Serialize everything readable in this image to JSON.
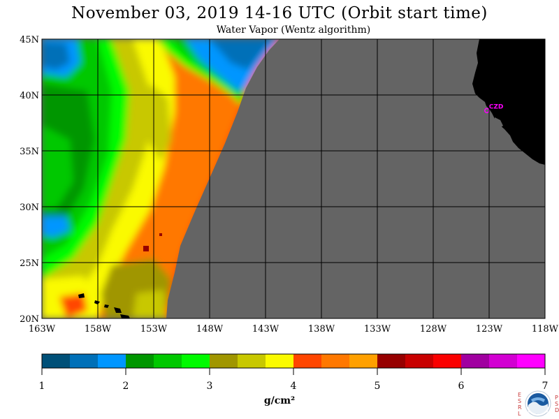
{
  "header": {
    "title": "November 03, 2019  14-16 UTC  (Orbit start time)",
    "subtitle": "Water Vapor (Wentz algorithm)"
  },
  "map": {
    "lat_labels": [
      "45N",
      "40N",
      "35N",
      "30N",
      "25N",
      "20N"
    ],
    "lon_labels": [
      "163W",
      "158W",
      "153W",
      "148W",
      "143W",
      "138W",
      "133W",
      "128W",
      "123W",
      "118W"
    ],
    "station": {
      "label": "CZD",
      "lat": 38.6,
      "lon": -123.2
    },
    "colors": {
      "land": "#000000",
      "no_data": "#646464",
      "grid": "#000000",
      "station": "#ff00ff"
    }
  },
  "colorbar": {
    "ticks": [
      "1",
      "2",
      "3",
      "4",
      "5",
      "6",
      "7"
    ],
    "unit": "g/cm²",
    "colors": [
      "#005078",
      "#0070b8",
      "#0096ff",
      "#009600",
      "#00c800",
      "#00fa00",
      "#a09600",
      "#c8c800",
      "#fafa00",
      "#ff4600",
      "#ff7800",
      "#ffa000",
      "#960000",
      "#c80000",
      "#fa0000",
      "#a000a0",
      "#d200d2",
      "#ff00ff"
    ]
  },
  "logo": {
    "left_letters": [
      "E",
      "S",
      "R",
      "L"
    ],
    "right_letters": [
      "P",
      "S",
      "D"
    ],
    "name": "NOAA"
  }
}
